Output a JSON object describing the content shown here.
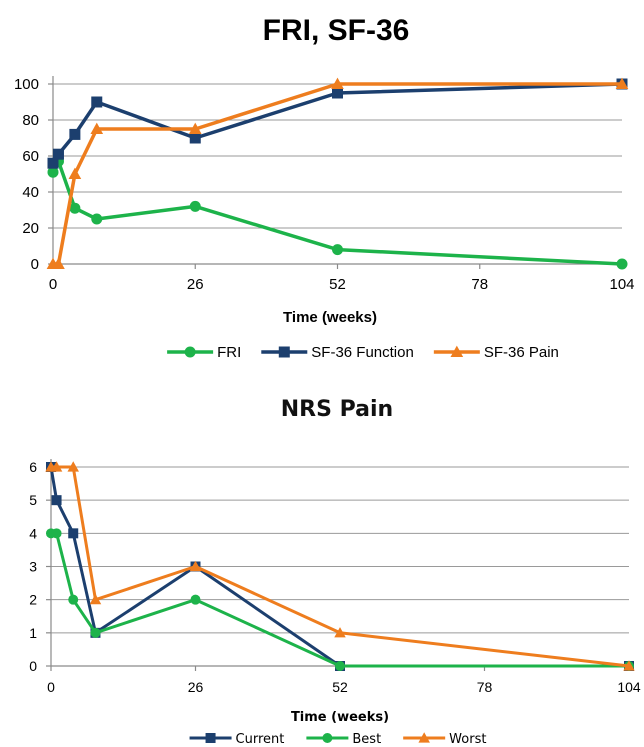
{
  "chart_data": [
    {
      "type": "line",
      "title": "FRI, SF-36",
      "xlabel": "Time (weeks)",
      "ylabel": "",
      "xlim": [
        0,
        104
      ],
      "ylim": [
        0,
        100
      ],
      "x_ticks": [
        0,
        26,
        52,
        78,
        104
      ],
      "y_ticks": [
        0,
        20,
        40,
        60,
        80,
        100
      ],
      "grid": true,
      "legend": "bottom",
      "series": [
        {
          "name": "FRI",
          "color": "#1db34a",
          "marker": "circle",
          "points": [
            [
              0,
              51
            ],
            [
              1,
              57
            ],
            [
              4,
              31
            ],
            [
              8,
              25
            ],
            [
              26,
              32
            ],
            [
              52,
              8
            ],
            [
              104,
              0
            ]
          ]
        },
        {
          "name": "SF-36 Function",
          "color": "#1c3f6e",
          "marker": "square",
          "points": [
            [
              0,
              56
            ],
            [
              1,
              61
            ],
            [
              4,
              72
            ],
            [
              8,
              90
            ],
            [
              26,
              70
            ],
            [
              52,
              95
            ],
            [
              104,
              100
            ]
          ]
        },
        {
          "name": "SF-36 Pain",
          "color": "#ee7d1e",
          "marker": "triangle",
          "points": [
            [
              0,
              0
            ],
            [
              1,
              0
            ],
            [
              4,
              50
            ],
            [
              8,
              75
            ],
            [
              26,
              75
            ],
            [
              52,
              100
            ],
            [
              104,
              100
            ]
          ]
        }
      ]
    },
    {
      "type": "line",
      "title": "NRS Pain",
      "xlabel": "Time (weeks)",
      "ylabel": "",
      "xlim": [
        0,
        104
      ],
      "ylim": [
        0,
        6
      ],
      "x_ticks": [
        0,
        26,
        52,
        78,
        104
      ],
      "y_ticks": [
        0,
        1,
        2,
        3,
        4,
        5,
        6
      ],
      "grid": true,
      "legend": "bottom",
      "series": [
        {
          "name": "Current",
          "color": "#1c3f6e",
          "marker": "square",
          "points": [
            [
              0,
              6
            ],
            [
              1,
              5
            ],
            [
              4,
              4
            ],
            [
              8,
              1
            ],
            [
              26,
              3
            ],
            [
              52,
              0
            ],
            [
              104,
              0
            ]
          ]
        },
        {
          "name": "Best",
          "color": "#1db34a",
          "marker": "circle",
          "points": [
            [
              0,
              4
            ],
            [
              1,
              4
            ],
            [
              4,
              2
            ],
            [
              8,
              1
            ],
            [
              26,
              2
            ],
            [
              52,
              0
            ],
            [
              104,
              0
            ]
          ]
        },
        {
          "name": "Worst",
          "color": "#ee7d1e",
          "marker": "triangle",
          "points": [
            [
              0,
              6
            ],
            [
              1,
              6
            ],
            [
              4,
              6
            ],
            [
              8,
              2
            ],
            [
              26,
              3
            ],
            [
              52,
              1
            ],
            [
              104,
              0
            ]
          ]
        }
      ]
    }
  ]
}
